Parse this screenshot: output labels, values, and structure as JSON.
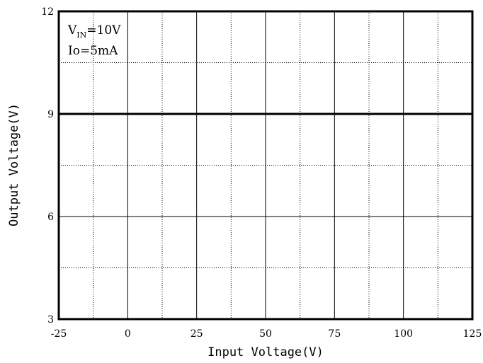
{
  "chart_data": {
    "type": "line",
    "xlabel": "Input Voltage(V)",
    "ylabel": "Output Voltage(V)",
    "xlim": [
      -25,
      125
    ],
    "ylim": [
      3,
      12
    ],
    "x_ticks": [
      -25,
      0,
      25,
      50,
      75,
      100,
      125
    ],
    "y_ticks": [
      3,
      6,
      9,
      12
    ],
    "x_tick_labels": [
      "-25",
      "0",
      "25",
      "50",
      "75",
      "100",
      "125"
    ],
    "y_tick_labels": [
      "3",
      "6",
      "9",
      "12"
    ],
    "grid": {
      "major": "solid",
      "minor": "dotted"
    },
    "annotations": {
      "vin_main": "V",
      "vin_sub": "IN",
      "vin_value": "=10V",
      "io": "Io=5mA"
    },
    "series": [
      {
        "x": [
          -25,
          125
        ],
        "y": [
          9,
          9
        ],
        "color": "#000000"
      }
    ]
  }
}
